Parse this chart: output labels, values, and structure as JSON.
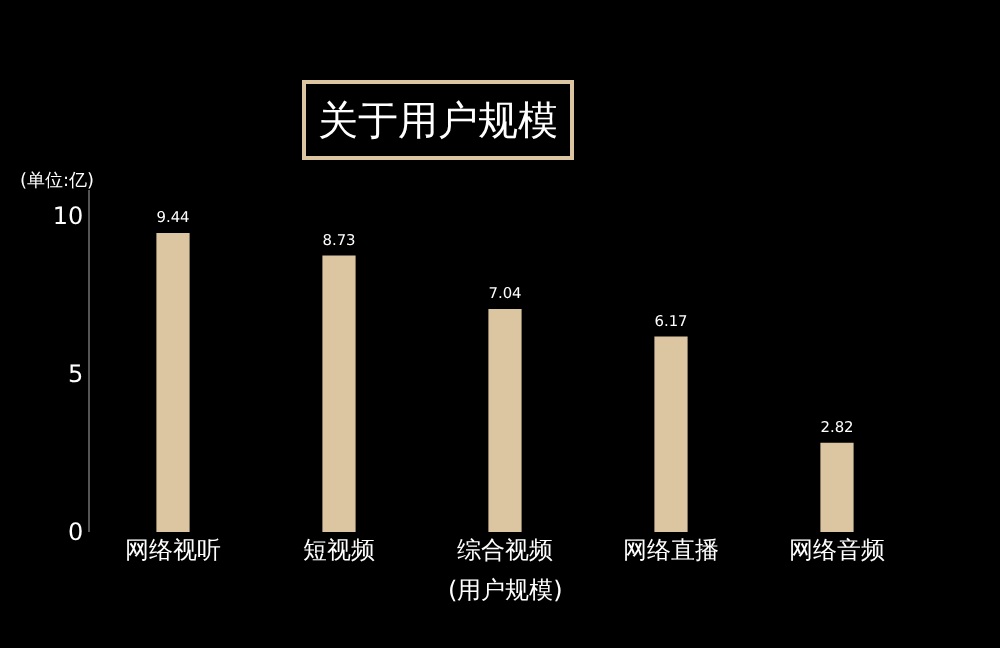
{
  "chart_data": {
    "type": "bar",
    "title": "关于用户规模",
    "ylabel": "(单位:亿)",
    "xlabel": "(用户规模)",
    "categories": [
      "网络视听",
      "短视频",
      "综合视频",
      "网络直播",
      "网络音频"
    ],
    "values": [
      9.44,
      8.73,
      7.04,
      6.17,
      2.82
    ],
    "color": "#dcc6a2",
    "ylim": [
      0,
      10.8
    ],
    "yticks": [
      0,
      5,
      10
    ],
    "data_labels": true,
    "grid": false,
    "legend": false
  }
}
